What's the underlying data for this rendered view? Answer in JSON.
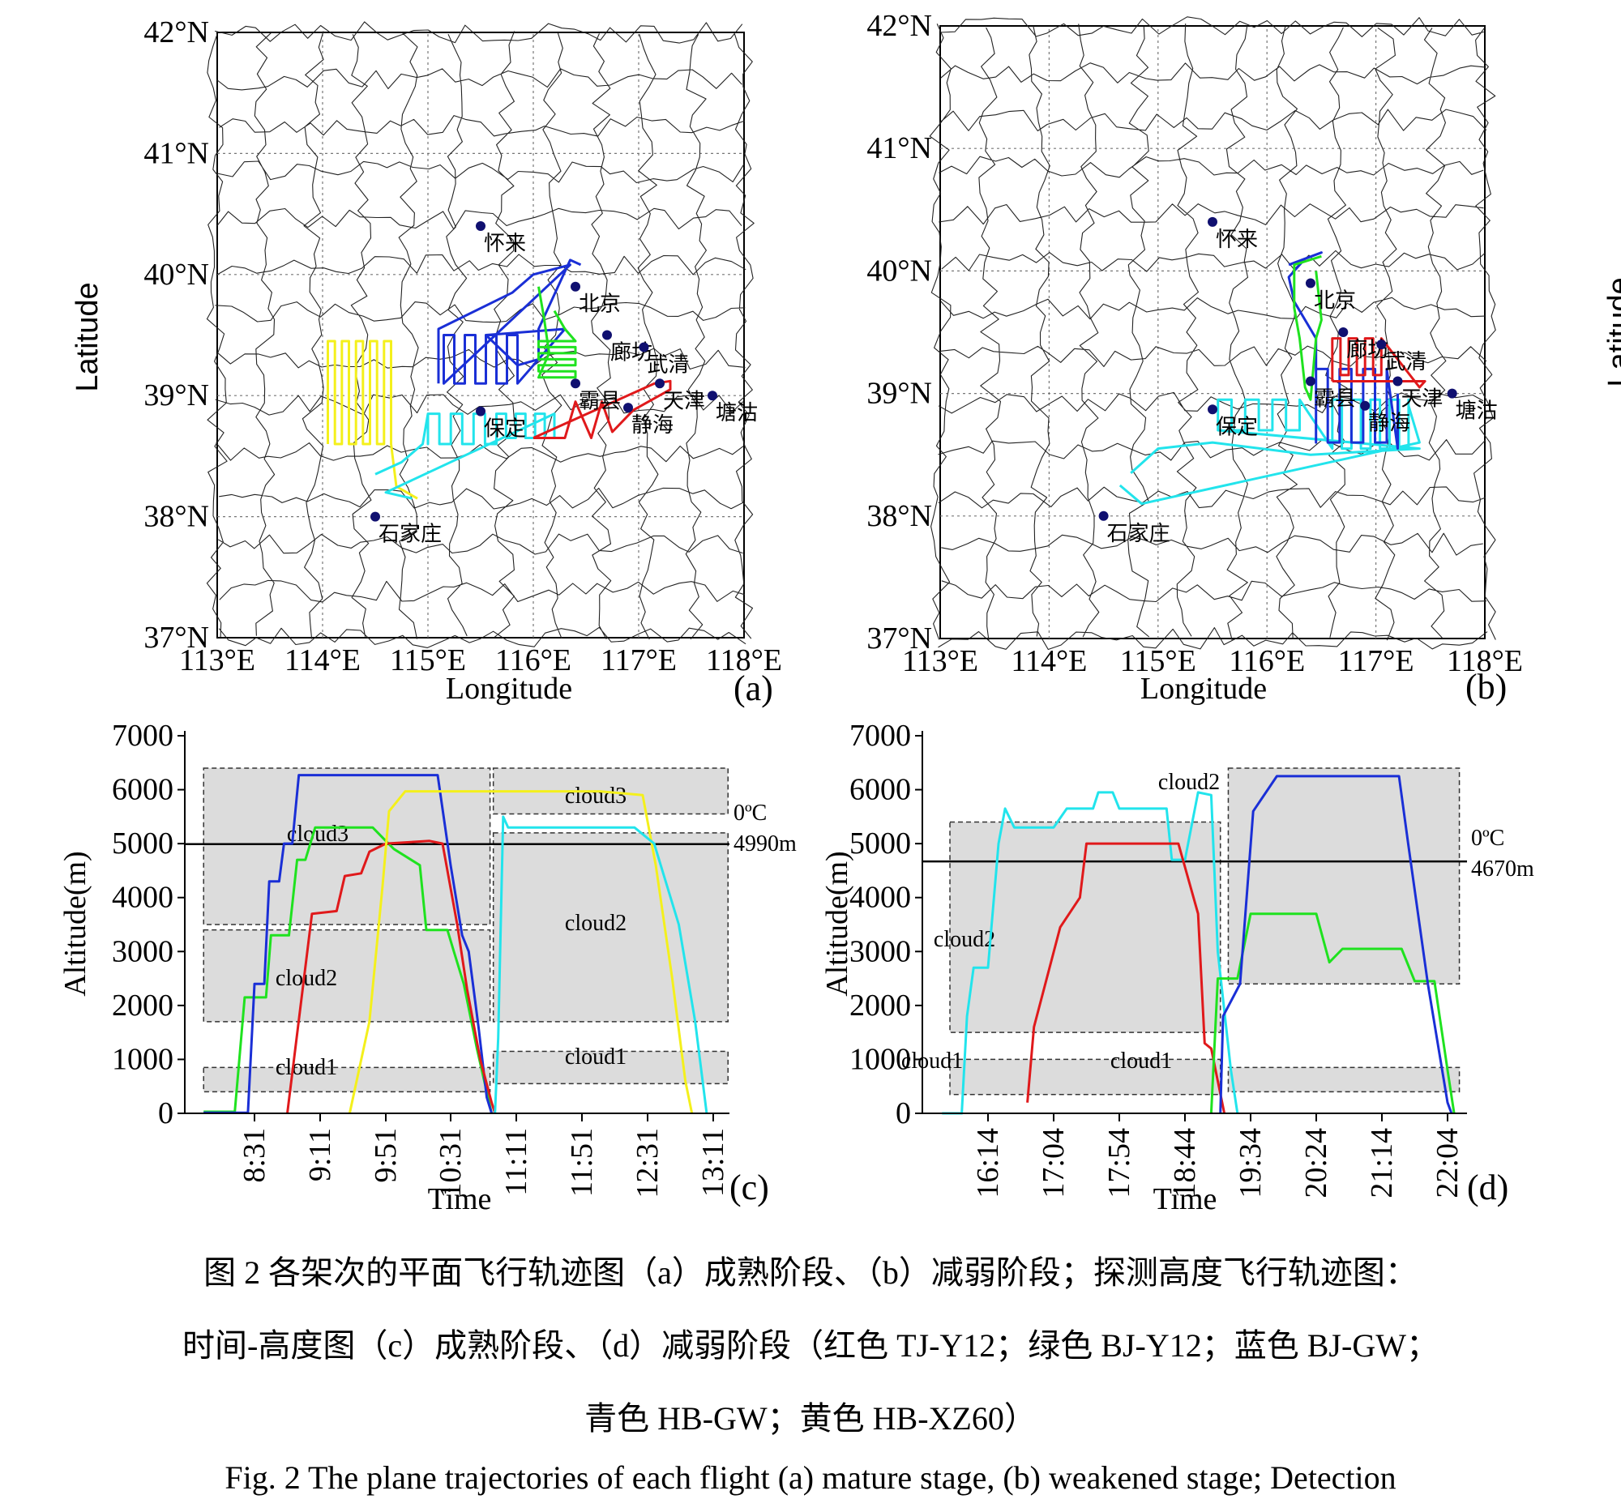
{
  "caption": {
    "zh_line1": "图 2 各架次的平面飞行轨迹图（a）成熟阶段、（b）减弱阶段；探测高度飞行轨迹图：",
    "zh_line2": "时间-高度图（c）成熟阶段、（d）减弱阶段（红色 TJ-Y12；绿色 BJ-Y12；蓝色 BJ-GW；",
    "zh_line3": "青色 HB-GW；黄色 HB-XZ60）",
    "en_line1": "Fig. 2 The plane trajectories of each flight (a) mature stage, (b) weakened stage; Detection"
  },
  "colors": {
    "TJ-Y12": "#e0191b",
    "BJ-Y12": "#1fe21f",
    "BJ-GW": "#1a2fd6",
    "HB-GW": "#22e4ec",
    "HB-XZ60": "#f4f01c",
    "cloud_fill": "#dcdcdc",
    "city_dot": "#101070"
  },
  "maps": [
    {
      "tag": "(a)",
      "xlabel": "Longitude",
      "ylabel": "Latitude",
      "lat_ticks": [
        "37°N",
        "38°N",
        "39°N",
        "40°N",
        "41°N",
        "42°N"
      ],
      "lon_ticks": [
        "113°E",
        "114°E",
        "115°E",
        "116°E",
        "117°E",
        "118°E"
      ],
      "cities": [
        {
          "name": "怀来",
          "lon": 115.5,
          "lat": 40.4
        },
        {
          "name": "北京",
          "lon": 116.4,
          "lat": 39.9
        },
        {
          "name": "廊坊",
          "lon": 116.7,
          "lat": 39.5
        },
        {
          "name": "武清",
          "lon": 117.05,
          "lat": 39.4
        },
        {
          "name": "霸县",
          "lon": 116.4,
          "lat": 39.1
        },
        {
          "name": "天津",
          "lon": 117.2,
          "lat": 39.1
        },
        {
          "name": "静海",
          "lon": 116.9,
          "lat": 38.9
        },
        {
          "name": "塘沽",
          "lon": 117.7,
          "lat": 39.0
        },
        {
          "name": "保定",
          "lon": 115.5,
          "lat": 38.87
        },
        {
          "name": "石家庄",
          "lon": 114.5,
          "lat": 38.0
        }
      ]
    },
    {
      "tag": "(b)",
      "xlabel": "Longitude",
      "ylabel": "Latitude",
      "lat_ticks": [
        "37°N",
        "38°N",
        "39°N",
        "40°N",
        "41°N",
        "42°N"
      ],
      "lon_ticks": [
        "113°E",
        "114°E",
        "115°E",
        "116°E",
        "117°E",
        "118°E"
      ],
      "cities": [
        {
          "name": "怀来",
          "lon": 115.5,
          "lat": 40.4
        },
        {
          "name": "北京",
          "lon": 116.4,
          "lat": 39.9
        },
        {
          "name": "廊坊",
          "lon": 116.7,
          "lat": 39.5
        },
        {
          "name": "武清",
          "lon": 117.05,
          "lat": 39.4
        },
        {
          "name": "霸县",
          "lon": 116.4,
          "lat": 39.1
        },
        {
          "name": "天津",
          "lon": 117.2,
          "lat": 39.1
        },
        {
          "name": "静海",
          "lon": 116.9,
          "lat": 38.9
        },
        {
          "name": "塘沽",
          "lon": 117.7,
          "lat": 39.0
        },
        {
          "name": "保定",
          "lon": 115.5,
          "lat": 38.87
        },
        {
          "name": "石家庄",
          "lon": 114.5,
          "lat": 38.0
        }
      ]
    }
  ],
  "chart_data": [
    {
      "panel": "(c)",
      "type": "line",
      "xlabel": "Time",
      "ylabel": "Altitude(m)",
      "x_ticks": [
        "8:31",
        "9:11",
        "9:51",
        "10:31",
        "11:11",
        "11:51",
        "12:31",
        "13:11"
      ],
      "ylim": [
        0,
        7000
      ],
      "y_ticks": [
        0,
        1000,
        2000,
        3000,
        4000,
        5000,
        6000,
        7000
      ],
      "zero_isotherm": {
        "label": "0ºC",
        "value_label": "4990m",
        "altitude": 4990
      },
      "clouds": [
        {
          "label": "cloud3",
          "t0": "8:00",
          "t1": "10:55",
          "bottom": 3500,
          "top": 6400
        },
        {
          "label": "cloud2",
          "t0": "8:00",
          "t1": "10:55",
          "bottom": 1700,
          "top": 3400
        },
        {
          "label": "cloud1",
          "t0": "8:00",
          "t1": "10:55",
          "bottom": 400,
          "top": 850
        },
        {
          "label": "cloud3",
          "t0": "10:57",
          "t1": "13:20",
          "bottom": 5550,
          "top": 6400
        },
        {
          "label": "cloud2",
          "t0": "10:57",
          "t1": "13:20",
          "bottom": 1700,
          "top": 5200
        },
        {
          "label": "cloud1",
          "t0": "10:57",
          "t1": "13:20",
          "bottom": 550,
          "top": 1150
        }
      ],
      "series": [
        {
          "name": "BJ-Y12",
          "color_key": "BJ-Y12",
          "points": [
            [
              "8:00",
              30
            ],
            [
              "8:19",
              30
            ],
            [
              "8:25",
              2150
            ],
            [
              "8:38",
              2150
            ],
            [
              "8:41",
              3300
            ],
            [
              "8:52",
              3300
            ],
            [
              "8:57",
              4700
            ],
            [
              "9:02",
              4700
            ],
            [
              "9:08",
              5300
            ],
            [
              "9:43",
              5300
            ],
            [
              "9:51",
              5050
            ],
            [
              "9:56",
              4900
            ],
            [
              "10:12",
              4600
            ],
            [
              "10:16",
              3400
            ],
            [
              "10:29",
              3400
            ],
            [
              "10:33",
              3000
            ],
            [
              "10:39",
              2400
            ],
            [
              "10:47",
              1200
            ],
            [
              "10:53",
              400
            ],
            [
              "10:56",
              0
            ]
          ]
        },
        {
          "name": "BJ-GW",
          "color_key": "BJ-GW",
          "points": [
            [
              "8:00",
              10
            ],
            [
              "8:27",
              10
            ],
            [
              "8:31",
              2400
            ],
            [
              "8:37",
              2400
            ],
            [
              "8:40",
              4300
            ],
            [
              "8:46",
              4300
            ],
            [
              "8:49",
              5000
            ],
            [
              "8:54",
              5000
            ],
            [
              "8:58",
              6270
            ],
            [
              "10:23",
              6270
            ],
            [
              "10:31",
              4600
            ],
            [
              "10:38",
              3300
            ],
            [
              "10:42",
              3000
            ],
            [
              "10:48",
              1600
            ],
            [
              "10:53",
              300
            ],
            [
              "10:56",
              0
            ]
          ]
        },
        {
          "name": "TJ-Y12",
          "color_key": "TJ-Y12",
          "points": [
            [
              "8:51",
              0
            ],
            [
              "9:06",
              3700
            ],
            [
              "9:21",
              3750
            ],
            [
              "9:26",
              4400
            ],
            [
              "9:36",
              4450
            ],
            [
              "9:41",
              4850
            ],
            [
              "9:51",
              5000
            ],
            [
              "10:18",
              5050
            ],
            [
              "10:26",
              5000
            ],
            [
              "10:35",
              3500
            ],
            [
              "10:41",
              2300
            ],
            [
              "10:49",
              1000
            ],
            [
              "10:56",
              200
            ],
            [
              "10:58",
              0
            ]
          ]
        },
        {
          "name": "HB-XZ60",
          "color_key": "HB-XZ60",
          "points": [
            [
              "9:29",
              0
            ],
            [
              "9:41",
              1700
            ],
            [
              "9:49",
              4200
            ],
            [
              "9:53",
              5600
            ],
            [
              "10:03",
              5970
            ],
            [
              "12:02",
              5970
            ],
            [
              "12:28",
              5900
            ],
            [
              "12:36",
              4600
            ],
            [
              "12:46",
              2500
            ],
            [
              "12:54",
              600
            ],
            [
              "12:58",
              0
            ]
          ]
        },
        {
          "name": "HB-GW",
          "color_key": "HB-GW",
          "points": [
            [
              "10:58",
              0
            ],
            [
              "11:00",
              1400
            ],
            [
              "11:03",
              5500
            ],
            [
              "11:06",
              5300
            ],
            [
              "12:23",
              5300
            ],
            [
              "12:35",
              5000
            ],
            [
              "12:50",
              3500
            ],
            [
              "13:00",
              1700
            ],
            [
              "13:07",
              0
            ]
          ]
        }
      ]
    },
    {
      "panel": "(d)",
      "type": "line",
      "xlabel": "Time",
      "ylabel": "Altitude(m)",
      "x_ticks": [
        "16:14",
        "17:04",
        "17:54",
        "18:44",
        "19:34",
        "20:24",
        "21:14",
        "22:04"
      ],
      "ylim": [
        0,
        7000
      ],
      "y_ticks": [
        0,
        1000,
        2000,
        3000,
        4000,
        5000,
        6000,
        7000
      ],
      "zero_isotherm": {
        "label": "0ºC",
        "value_label": "4670m",
        "altitude": 4670
      },
      "clouds": [
        {
          "label": "cloud2",
          "t0": "15:45",
          "t1": "19:11",
          "bottom": 1500,
          "top": 5400
        },
        {
          "label": "cloud1",
          "t0": "15:45",
          "t1": "19:11",
          "bottom": 350,
          "top": 1000
        },
        {
          "label": "cloud2",
          "t0": "19:17",
          "t1": "22:13",
          "bottom": 2400,
          "top": 6400
        },
        {
          "label": "cloud1",
          "t0": "19:17",
          "t1": "22:13",
          "bottom": 400,
          "top": 850
        }
      ],
      "series": [
        {
          "name": "HB-GW",
          "color_key": "HB-GW",
          "points": [
            [
              "15:39",
              0
            ],
            [
              "15:54",
              0
            ],
            [
              "15:58",
              1800
            ],
            [
              "16:03",
              2700
            ],
            [
              "16:14",
              2700
            ],
            [
              "16:22",
              5000
            ],
            [
              "16:27",
              5650
            ],
            [
              "16:34",
              5300
            ],
            [
              "17:04",
              5300
            ],
            [
              "17:14",
              5650
            ],
            [
              "17:34",
              5650
            ],
            [
              "17:38",
              5950
            ],
            [
              "17:49",
              5950
            ],
            [
              "17:54",
              5650
            ],
            [
              "18:30",
              5650
            ],
            [
              "18:34",
              4700
            ],
            [
              "18:44",
              4700
            ],
            [
              "18:54",
              5950
            ],
            [
              "19:04",
              5900
            ],
            [
              "19:09",
              3000
            ],
            [
              "19:19",
              800
            ],
            [
              "19:24",
              0
            ]
          ]
        },
        {
          "name": "TJ-Y12",
          "color_key": "TJ-Y12",
          "points": [
            [
              "16:44",
              200
            ],
            [
              "16:49",
              1600
            ],
            [
              "17:09",
              3450
            ],
            [
              "17:24",
              4000
            ],
            [
              "17:29",
              5000
            ],
            [
              "18:39",
              5000
            ],
            [
              "18:54",
              3700
            ],
            [
              "18:59",
              1300
            ],
            [
              "19:04",
              1200
            ],
            [
              "19:09",
              600
            ],
            [
              "19:14",
              0
            ]
          ]
        },
        {
          "name": "BJ-Y12",
          "color_key": "BJ-Y12",
          "points": [
            [
              "19:04",
              0
            ],
            [
              "19:09",
              2500
            ],
            [
              "19:24",
              2500
            ],
            [
              "19:34",
              3700
            ],
            [
              "20:24",
              3700
            ],
            [
              "20:34",
              2800
            ],
            [
              "20:44",
              3050
            ],
            [
              "21:29",
              3050
            ],
            [
              "21:39",
              2450
            ],
            [
              "21:54",
              2450
            ],
            [
              "22:04",
              800
            ],
            [
              "22:09",
              0
            ]
          ]
        },
        {
          "name": "BJ-GW",
          "color_key": "BJ-GW",
          "points": [
            [
              "19:11",
              0
            ],
            [
              "19:13",
              1800
            ],
            [
              "19:26",
              2400
            ],
            [
              "19:36",
              5600
            ],
            [
              "19:54",
              6250
            ],
            [
              "21:27",
              6250
            ],
            [
              "21:34",
              5000
            ],
            [
              "21:49",
              2400
            ],
            [
              "22:04",
              200
            ],
            [
              "22:07",
              0
            ]
          ]
        }
      ]
    }
  ]
}
